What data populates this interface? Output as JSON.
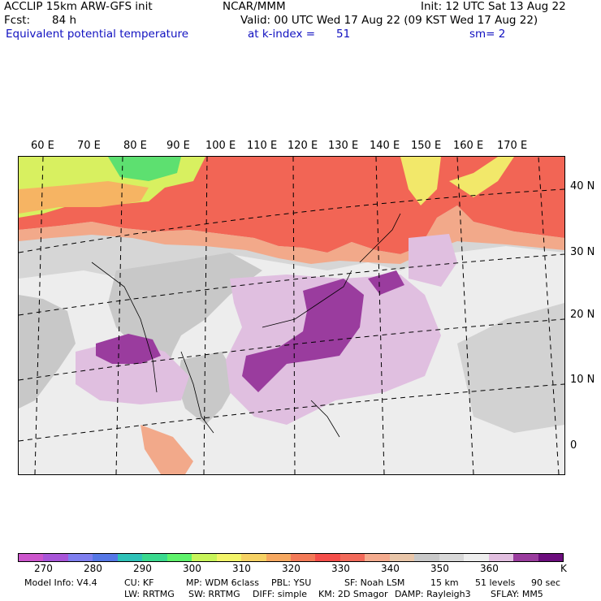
{
  "header": {
    "model": "ACCLIP 15km ARW-GFS init",
    "org": "NCAR/MMM",
    "init": "Init: 12 UTC Sat 13 Aug 22",
    "fcst_label": "Fcst:",
    "fcst_value": "84 h",
    "valid": "Valid: 00 UTC Wed 17 Aug 22 (09 KST Wed 17 Aug 22)",
    "field": "Equivalent potential temperature",
    "level": "at k-index =",
    "level_value": "51",
    "smooth": "sm= 2"
  },
  "longitude_labels": [
    "60 E",
    "70 E",
    "80 E",
    "90 E",
    "100 E",
    "110 E",
    "120 E",
    "130 E",
    "140 E",
    "150 E",
    "160 E",
    "170 E"
  ],
  "latitude_labels": [
    "40 N",
    "30 N",
    "20 N",
    "10 N",
    "0"
  ],
  "colorbar": {
    "colors": [
      "#cc55cc",
      "#a855d8",
      "#7f7ff0",
      "#5577e6",
      "#2ec2b8",
      "#39d98e",
      "#5ef26b",
      "#c8f55a",
      "#f3f56a",
      "#f6d264",
      "#f6a860",
      "#f37a57",
      "#f54e4a",
      "#f26a5a",
      "#f4ab8e",
      "#e9c6a9",
      "#c8c8c8",
      "#d8d8d8",
      "#eeeeee",
      "#e2bfe0",
      "#9a3c9e",
      "#6c0d7d"
    ],
    "tick_labels": [
      "270",
      "280",
      "290",
      "300",
      "310",
      "320",
      "330",
      "340",
      "350",
      "360"
    ],
    "unit": "K"
  },
  "footer": {
    "line1": [
      "Model Info: V4.4",
      "CU: KF",
      "MP: WDM 6class",
      "PBL: YSU",
      "SF: Noah LSM",
      "15 km",
      "51 levels",
      "90 sec"
    ],
    "line2": [
      "LW: RRTMG",
      "SW: RRTMG",
      "DIFF: simple",
      "KM: 2D Smagor",
      "DAMP: Rayleigh3",
      "SFLAY: MM5"
    ]
  }
}
